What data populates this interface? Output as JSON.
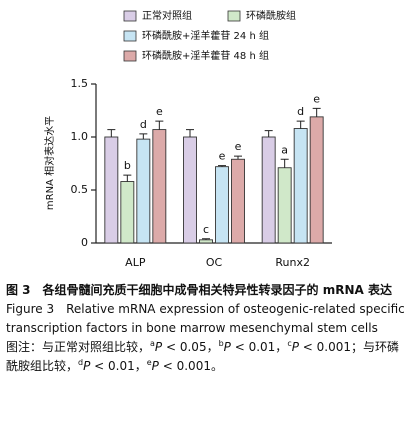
{
  "chart_data": {
    "type": "bar",
    "y_label": "mRNA 相对表达水平",
    "categories": [
      "ALP",
      "OC",
      "Runx2"
    ],
    "series": [
      {
        "name": "正常对照组",
        "color": "#d9cde6",
        "values": [
          1.0,
          1.0,
          1.0
        ],
        "errors": [
          0.07,
          0.07,
          0.06
        ]
      },
      {
        "name": "环磷酰胺组",
        "color": "#d0e8c9",
        "values": [
          0.58,
          0.03,
          0.71
        ],
        "errors": [
          0.06,
          0.01,
          0.08
        ],
        "sig_labels": [
          "b",
          "c",
          "a"
        ]
      },
      {
        "name": "环磷酰胺+淫羊藿苷 24 h 组",
        "color": "#c6e4f3",
        "values": [
          0.98,
          0.72,
          1.08
        ],
        "errors": [
          0.05,
          0.01,
          0.07
        ],
        "sig_labels": [
          "d",
          "e",
          "d"
        ]
      },
      {
        "name": "环磷酰胺+淫羊藿苷 48 h 组",
        "color": "#dcaaa9",
        "values": [
          1.07,
          0.79,
          1.19
        ],
        "errors": [
          0.08,
          0.03,
          0.08
        ],
        "sig_labels": [
          "e",
          "e",
          "e"
        ]
      }
    ],
    "ylim": [
      0,
      1.5
    ],
    "yticks": [
      0,
      0.5,
      {
        "value": 1,
        "label": "1.0"
      },
      1.5
    ]
  },
  "caption": {
    "title_zh": "图 3　各组骨髓间充质干细胞中成骨相关特异性转录因子的 mRNA 表达",
    "title_en": "Figure 3　Relative mRNA expression of osteogenic-related specific transcription factors in bone marrow mesenchymal stem cells",
    "note": [
      {
        "text": "图注：与正常对照组比较，"
      },
      {
        "text": "a",
        "style": "sup"
      },
      {
        "text": "P",
        "style": "italic"
      },
      {
        "text": " < 0.05，"
      },
      {
        "text": "b",
        "style": "sup"
      },
      {
        "text": "P",
        "style": "italic"
      },
      {
        "text": " < 0.01，"
      },
      {
        "text": "c",
        "style": "sup"
      },
      {
        "text": "P",
        "style": "italic"
      },
      {
        "text": " < 0.001；与环磷酰胺组比较，"
      },
      {
        "text": "d",
        "style": "sup"
      },
      {
        "text": "P",
        "style": "italic"
      },
      {
        "text": " < 0.01，"
      },
      {
        "text": "e",
        "style": "sup"
      },
      {
        "text": "P",
        "style": "italic"
      },
      {
        "text": " < 0.001。"
      }
    ]
  }
}
